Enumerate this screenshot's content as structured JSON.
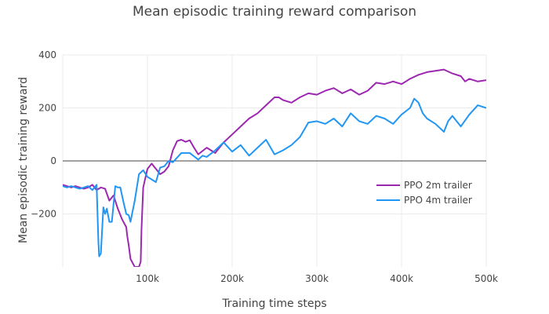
{
  "chart_data": {
    "type": "line",
    "title": "Mean episodic training reward comparison",
    "xlabel": "Training time steps",
    "ylabel": "Mean episodic training reward",
    "xlim": [
      0,
      500000
    ],
    "ylim": [
      -400,
      400
    ],
    "xticks": [
      {
        "value": 100000,
        "label": "100k"
      },
      {
        "value": 200000,
        "label": "200k"
      },
      {
        "value": 300000,
        "label": "300k"
      },
      {
        "value": 400000,
        "label": "400k"
      },
      {
        "value": 500000,
        "label": "500k"
      }
    ],
    "yticks": [
      {
        "value": -200,
        "label": "−200"
      },
      {
        "value": 0,
        "label": "0"
      },
      {
        "value": 200,
        "label": "200"
      },
      {
        "value": 400,
        "label": "400"
      }
    ],
    "grid": true,
    "zero_line": true,
    "legend_position": "right",
    "series": [
      {
        "name": "PPO 2m trailer",
        "color": "#9C27B0",
        "x": [
          0,
          5000,
          10000,
          15000,
          20000,
          25000,
          30000,
          35000,
          40000,
          45000,
          50000,
          55000,
          60000,
          65000,
          70000,
          75000,
          76000,
          78000,
          80000,
          85000,
          88000,
          90000,
          92000,
          93000,
          95000,
          100000,
          105000,
          110000,
          115000,
          120000,
          125000,
          130000,
          135000,
          140000,
          145000,
          150000,
          155000,
          160000,
          170000,
          180000,
          190000,
          200000,
          210000,
          220000,
          230000,
          240000,
          250000,
          255000,
          260000,
          270000,
          280000,
          290000,
          300000,
          310000,
          320000,
          330000,
          340000,
          350000,
          360000,
          370000,
          380000,
          390000,
          400000,
          405000,
          410000,
          420000,
          430000,
          440000,
          450000,
          460000,
          470000,
          475000,
          480000,
          490000,
          500000
        ],
        "y": [
          -90,
          -95,
          -100,
          -95,
          -100,
          -105,
          -100,
          -90,
          -110,
          -100,
          -105,
          -150,
          -130,
          -180,
          -220,
          -250,
          -280,
          -320,
          -370,
          -400,
          -400,
          -400,
          -380,
          -260,
          -100,
          -30,
          -10,
          -30,
          -50,
          -40,
          -20,
          40,
          75,
          80,
          72,
          78,
          50,
          25,
          50,
          30,
          70,
          100,
          130,
          160,
          180,
          210,
          240,
          240,
          230,
          220,
          240,
          255,
          250,
          265,
          275,
          255,
          270,
          250,
          265,
          295,
          290,
          300,
          290,
          300,
          310,
          325,
          335,
          340,
          345,
          330,
          320,
          300,
          310,
          300,
          305
        ]
      },
      {
        "name": "PPO 4m trailer",
        "color": "#2196F3",
        "x": [
          0,
          5000,
          10000,
          15000,
          20000,
          25000,
          30000,
          35000,
          40000,
          42000,
          43000,
          45000,
          48000,
          50000,
          52000,
          55000,
          58000,
          62000,
          65000,
          68000,
          72000,
          75000,
          78000,
          80000,
          85000,
          90000,
          95000,
          100000,
          105000,
          110000,
          115000,
          120000,
          125000,
          130000,
          140000,
          150000,
          160000,
          165000,
          170000,
          180000,
          190000,
          200000,
          210000,
          220000,
          230000,
          240000,
          250000,
          260000,
          270000,
          280000,
          290000,
          300000,
          310000,
          320000,
          330000,
          340000,
          350000,
          360000,
          370000,
          380000,
          390000,
          400000,
          410000,
          415000,
          420000,
          425000,
          430000,
          440000,
          450000,
          455000,
          460000,
          470000,
          480000,
          490000,
          500000
        ],
        "y": [
          -95,
          -100,
          -95,
          -100,
          -105,
          -100,
          -95,
          -110,
          -90,
          -300,
          -360,
          -350,
          -175,
          -200,
          -180,
          -230,
          -230,
          -95,
          -100,
          -100,
          -160,
          -200,
          -205,
          -230,
          -150,
          -50,
          -35,
          -60,
          -70,
          -80,
          -25,
          -20,
          0,
          -5,
          30,
          30,
          5,
          20,
          15,
          40,
          70,
          35,
          60,
          20,
          50,
          80,
          25,
          40,
          60,
          90,
          145,
          150,
          140,
          160,
          130,
          180,
          150,
          140,
          170,
          160,
          140,
          175,
          200,
          235,
          220,
          180,
          160,
          140,
          110,
          150,
          170,
          130,
          175,
          210,
          200
        ]
      }
    ]
  }
}
